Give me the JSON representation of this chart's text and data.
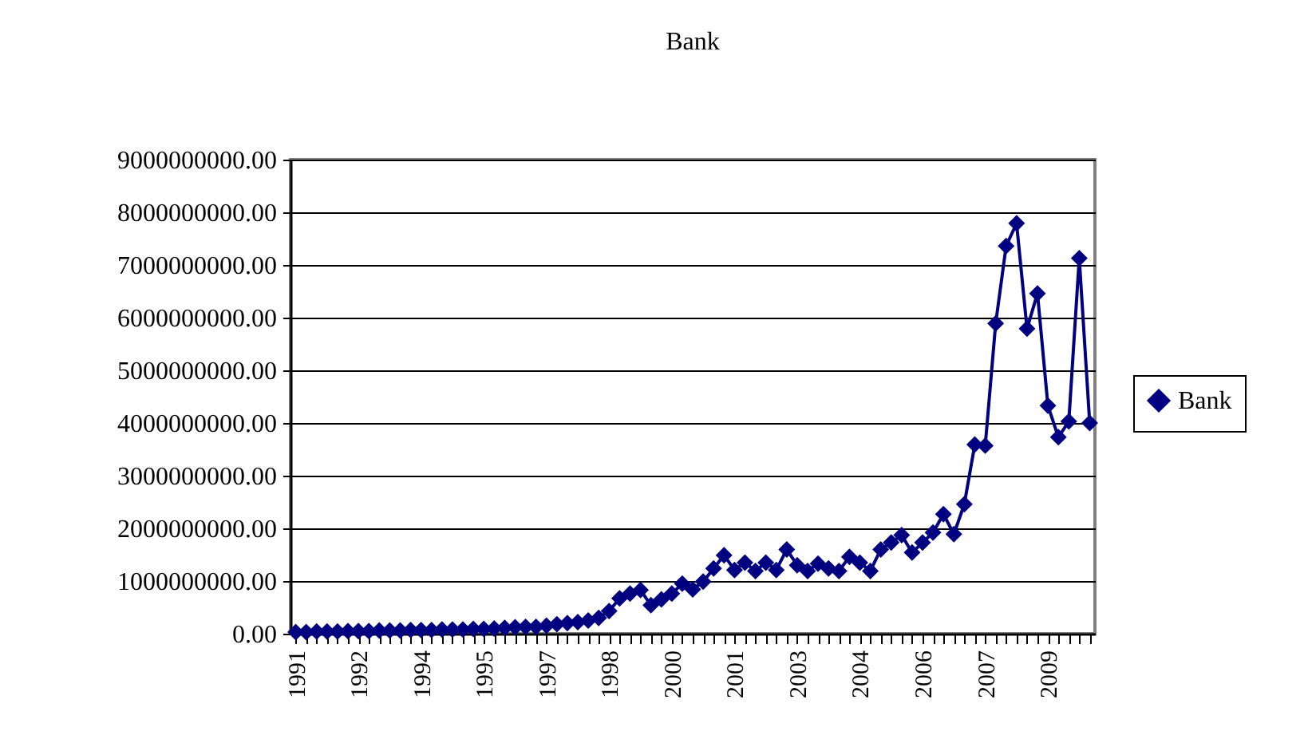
{
  "chart_data": {
    "type": "line",
    "title": "Bank",
    "categories": [
      "1991",
      null,
      null,
      null,
      null,
      null,
      "1992",
      null,
      null,
      null,
      null,
      null,
      "1994",
      null,
      null,
      null,
      null,
      null,
      "1995",
      null,
      null,
      null,
      null,
      null,
      "1997",
      null,
      null,
      null,
      null,
      null,
      "1998",
      null,
      null,
      null,
      null,
      null,
      "2000",
      null,
      null,
      null,
      null,
      null,
      "2001",
      null,
      null,
      null,
      null,
      null,
      "2003",
      null,
      null,
      null,
      null,
      null,
      "2004",
      null,
      null,
      null,
      null,
      null,
      "2006",
      null,
      null,
      null,
      null,
      null,
      "2007",
      null,
      null,
      null,
      null,
      null,
      "2009",
      null,
      null,
      null,
      null
    ],
    "series": [
      {
        "name": "Bank",
        "color": "#000080",
        "values": [
          30000000,
          30000000,
          40000000,
          40000000,
          40000000,
          50000000,
          50000000,
          50000000,
          60000000,
          60000000,
          60000000,
          70000000,
          70000000,
          70000000,
          80000000,
          80000000,
          80000000,
          90000000,
          90000000,
          100000000,
          110000000,
          120000000,
          130000000,
          130000000,
          150000000,
          180000000,
          200000000,
          220000000,
          250000000,
          300000000,
          430000000,
          670000000,
          760000000,
          830000000,
          540000000,
          650000000,
          760000000,
          950000000,
          840000000,
          990000000,
          1240000000,
          1490000000,
          1210000000,
          1350000000,
          1190000000,
          1350000000,
          1210000000,
          1600000000,
          1300000000,
          1190000000,
          1330000000,
          1240000000,
          1190000000,
          1460000000,
          1350000000,
          1190000000,
          1600000000,
          1730000000,
          1870000000,
          1540000000,
          1730000000,
          1920000000,
          2270000000,
          1890000000,
          2460000000,
          3590000000,
          3570000000,
          5890000000,
          7360000000,
          7790000000,
          5790000000,
          6460000000,
          4330000000,
          3730000000,
          4030000000,
          7130000000,
          4000000000
        ]
      }
    ],
    "ylim": [
      0,
      9000000000
    ],
    "yticks": [
      {
        "value": 0,
        "label": "0.00"
      },
      {
        "value": 1000000000,
        "label": "1000000000.00"
      },
      {
        "value": 2000000000,
        "label": "2000000000.00"
      },
      {
        "value": 3000000000,
        "label": "3000000000.00"
      },
      {
        "value": 4000000000,
        "label": "4000000000.00"
      },
      {
        "value": 5000000000,
        "label": "5000000000.00"
      },
      {
        "value": 6000000000,
        "label": "6000000000.00"
      },
      {
        "value": 7000000000,
        "label": "7000000000.00"
      },
      {
        "value": 8000000000,
        "label": "8000000000.00"
      },
      {
        "value": 9000000000,
        "label": "9000000000.00"
      }
    ],
    "grid": "y",
    "legend": "right",
    "marker": "diamond",
    "line_style": "solid"
  }
}
